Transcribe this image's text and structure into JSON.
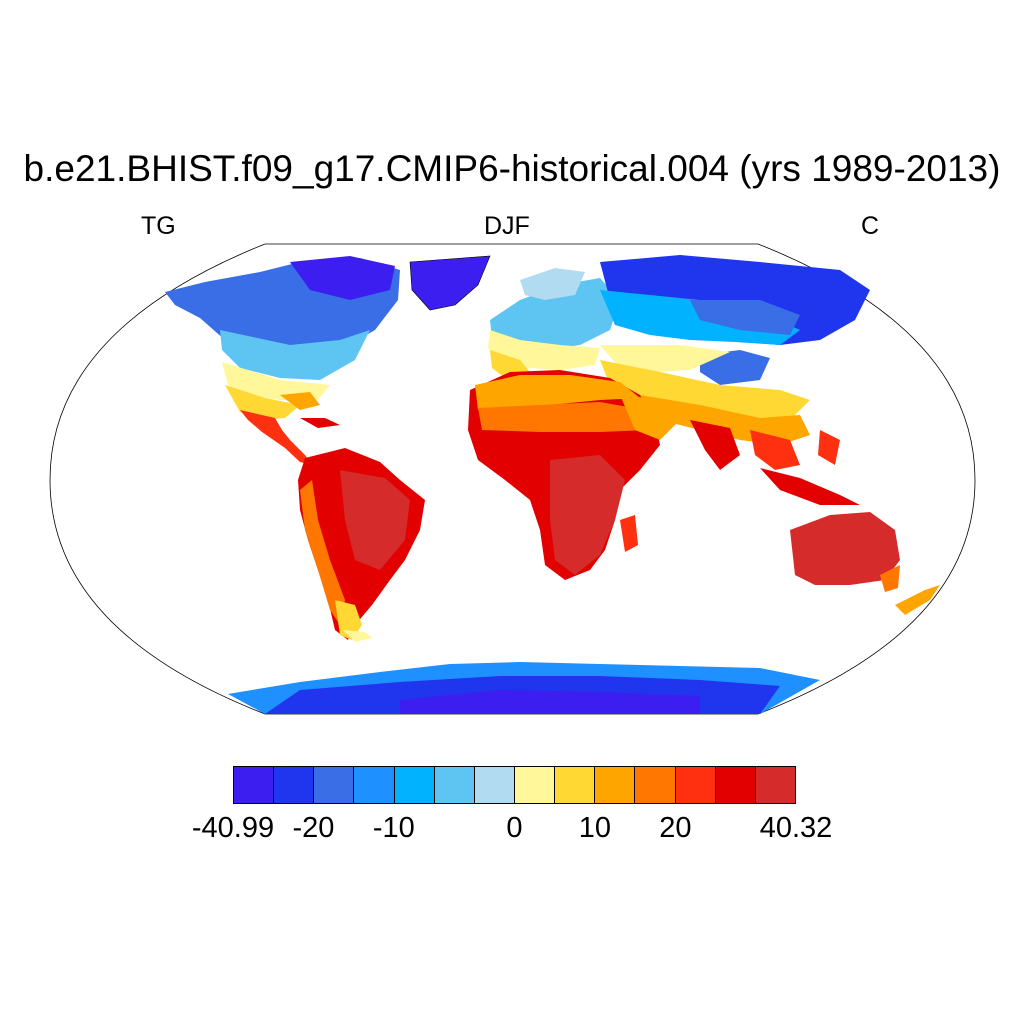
{
  "title": "b.e21.BHIST.f09_g17.CMIP6-historical.004 (yrs 1989-2013)",
  "subtitle_left": "TG",
  "subtitle_center": "DJF",
  "subtitle_right": "C",
  "colorbar": {
    "colors": [
      "#3d1ef0",
      "#1f35ee",
      "#3a6ee6",
      "#1f90ff",
      "#00b2ff",
      "#5ec5f2",
      "#b0dbf1",
      "#fff799",
      "#ffd833",
      "#ffa500",
      "#ff7600",
      "#ff3010",
      "#e20000",
      "#d52b2b"
    ],
    "labels": [
      {
        "text": "-40.99",
        "boundary": 0
      },
      {
        "text": "-20",
        "boundary": 2
      },
      {
        "text": "-10",
        "boundary": 4
      },
      {
        "text": "0",
        "boundary": 7
      },
      {
        "text": "10",
        "boundary": 9
      },
      {
        "text": "20",
        "boundary": 11
      },
      {
        "text": "40.32",
        "boundary": 14
      }
    ]
  }
}
